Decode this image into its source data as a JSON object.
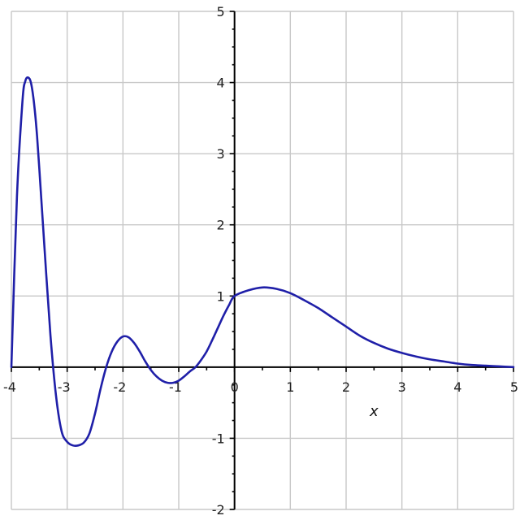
{
  "chart_data": {
    "type": "line",
    "title": "",
    "xlabel": "x",
    "ylabel": "",
    "xlim": [
      -4,
      5
    ],
    "ylim": [
      -2,
      5
    ],
    "grid": true,
    "x_ticks": [
      -4,
      -3,
      -2,
      -1,
      0,
      1,
      2,
      3,
      4,
      5
    ],
    "x_tick_labels": [
      "-4",
      "-3",
      "-2",
      "-1",
      "0",
      "1",
      "2",
      "3",
      "4",
      "5"
    ],
    "y_ticks": [
      -2,
      -1,
      1,
      2,
      3,
      4,
      5
    ],
    "y_tick_labels": [
      "-2",
      "-1",
      "1",
      "2",
      "3",
      "4",
      "5"
    ],
    "series": [
      {
        "color": "#1f1fa8",
        "x": [
          -4.0,
          -3.9,
          -3.8,
          -3.75,
          -3.7,
          -3.65,
          -3.6,
          -3.55,
          -3.5,
          -3.4,
          -3.3,
          -3.2,
          -3.1,
          -3.0,
          -2.9,
          -2.8,
          -2.7,
          -2.6,
          -2.5,
          -2.4,
          -2.3,
          -2.2,
          -2.1,
          -2.0,
          -1.9,
          -1.8,
          -1.7,
          -1.6,
          -1.5,
          -1.4,
          -1.3,
          -1.2,
          -1.1,
          -1.0,
          -0.9,
          -0.8,
          -0.7,
          -0.6,
          -0.5,
          -0.4,
          -0.3,
          -0.2,
          -0.1,
          0.0,
          0.25,
          0.5,
          0.75,
          1.0,
          1.25,
          1.5,
          1.75,
          2.0,
          2.25,
          2.5,
          2.75,
          3.0,
          3.25,
          3.5,
          3.75,
          4.0,
          4.25,
          4.5,
          4.75,
          5.0
        ],
        "y": [
          0.0,
          2.4,
          3.75,
          4.02,
          4.07,
          4.0,
          3.75,
          3.35,
          2.8,
          1.6,
          0.45,
          -0.4,
          -0.9,
          -1.05,
          -1.1,
          -1.1,
          -1.06,
          -0.93,
          -0.65,
          -0.3,
          0.0,
          0.22,
          0.36,
          0.43,
          0.42,
          0.34,
          0.22,
          0.08,
          -0.04,
          -0.13,
          -0.19,
          -0.22,
          -0.22,
          -0.19,
          -0.13,
          -0.06,
          0.0,
          0.1,
          0.22,
          0.38,
          0.55,
          0.72,
          0.87,
          1.0,
          1.08,
          1.12,
          1.1,
          1.04,
          0.94,
          0.83,
          0.7,
          0.57,
          0.44,
          0.34,
          0.26,
          0.2,
          0.15,
          0.11,
          0.08,
          0.05,
          0.03,
          0.02,
          0.01,
          0.0
        ]
      }
    ]
  }
}
